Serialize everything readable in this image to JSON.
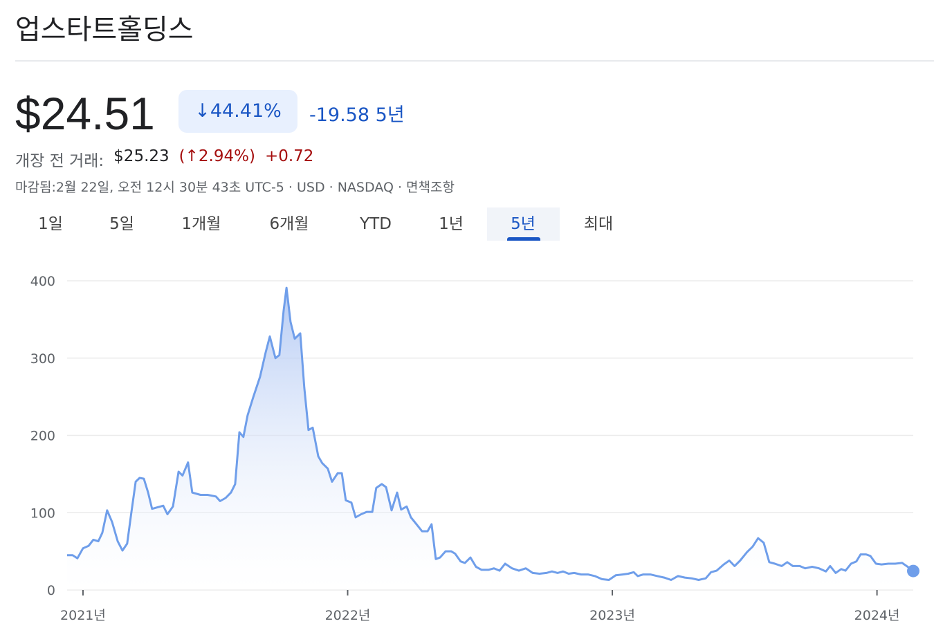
{
  "header": {
    "title": "업스타트홀딩스"
  },
  "quote": {
    "price": "$24.51",
    "change_percent": "↓44.41%",
    "change": "-19.58",
    "period": "5년"
  },
  "premarket": {
    "label": "개장 전 거래:",
    "price": "$25.23",
    "change_percent": "(↑2.94%)",
    "change": "+0.72"
  },
  "status": "마감됨:2월 22일, 오전 12시 30분 43초 UTC-5 · USD · NASDAQ · 면책조항",
  "tabs": {
    "items": [
      "1일",
      "5일",
      "1개월",
      "6개월",
      "YTD",
      "1년",
      "5년",
      "최대"
    ],
    "selected": 6
  },
  "chart_data": {
    "type": "area",
    "color": "#6f9eea",
    "grid": true,
    "x": [
      2020.94,
      2020.961,
      2020.979,
      2021.0,
      2021.021,
      2021.039,
      2021.058,
      2021.073,
      2021.091,
      2021.11,
      2021.131,
      2021.149,
      2021.167,
      2021.183,
      2021.199,
      2021.214,
      2021.23,
      2021.246,
      2021.261,
      2021.282,
      2021.303,
      2021.319,
      2021.34,
      2021.361,
      2021.376,
      2021.397,
      2021.413,
      2021.444,
      2021.471,
      2021.502,
      2021.518,
      2021.539,
      2021.559,
      2021.575,
      2021.591,
      2021.606,
      2021.622,
      2021.643,
      2021.669,
      2021.69,
      2021.706,
      2021.727,
      2021.742,
      2021.758,
      2021.769,
      2021.784,
      2021.8,
      2021.821,
      2021.836,
      2021.852,
      2021.868,
      2021.889,
      2021.904,
      2021.925,
      2021.941,
      2021.962,
      2021.978,
      2021.993,
      2022.014,
      2022.03,
      2022.051,
      2022.072,
      2022.093,
      2022.108,
      2022.129,
      2022.145,
      2022.166,
      2022.187,
      2022.202,
      2022.223,
      2022.239,
      2022.26,
      2022.281,
      2022.302,
      2022.317,
      2022.333,
      2022.349,
      2022.37,
      2022.391,
      2022.406,
      2022.427,
      2022.443,
      2022.464,
      2022.485,
      2022.506,
      2022.532,
      2022.553,
      2022.574,
      2022.595,
      2022.621,
      2022.647,
      2022.673,
      2022.699,
      2022.725,
      2022.751,
      2022.772,
      2022.793,
      2022.814,
      2022.835,
      2022.856,
      2022.882,
      2022.908,
      2022.934,
      2022.961,
      2022.987,
      2023.013,
      2023.039,
      2023.06,
      2023.081,
      2023.096,
      2023.117,
      2023.144,
      2023.17,
      2023.196,
      2023.222,
      2023.248,
      2023.274,
      2023.3,
      2023.326,
      2023.353,
      2023.373,
      2023.394,
      2023.421,
      2023.442,
      2023.462,
      2023.483,
      2023.509,
      2023.53,
      2023.551,
      2023.572,
      2023.593,
      2023.614,
      2023.64,
      2023.661,
      2023.682,
      2023.708,
      2023.729,
      2023.755,
      2023.781,
      2023.807,
      2023.823,
      2023.844,
      2023.865,
      2023.881,
      2023.902,
      2023.922,
      2023.938,
      2023.959,
      2023.975,
      2023.996,
      2024.017,
      2024.043,
      2024.069,
      2024.095,
      2024.116,
      2024.137
    ],
    "values": [
      45,
      45,
      41,
      54,
      57,
      65,
      63,
      74,
      103,
      88,
      63,
      51,
      60,
      101,
      140,
      145,
      144,
      126,
      105,
      107,
      109,
      98,
      108,
      153,
      148,
      165,
      126,
      123,
      123,
      121,
      115,
      119,
      126,
      137,
      204,
      198,
      226,
      249,
      276,
      307,
      328,
      300,
      304,
      361,
      391,
      347,
      325,
      332,
      262,
      207,
      210,
      173,
      164,
      157,
      140,
      151,
      151,
      116,
      113,
      94,
      98,
      101,
      101,
      132,
      137,
      133,
      103,
      126,
      104,
      108,
      94,
      85,
      76,
      76,
      85,
      40,
      42,
      50,
      50,
      47,
      37,
      35,
      42,
      30,
      26,
      26,
      28,
      25,
      34,
      28,
      25,
      28,
      22,
      21,
      22,
      24,
      22,
      24,
      21,
      22,
      20,
      20,
      18,
      14,
      13,
      19,
      20,
      21,
      23,
      18,
      20,
      20,
      18,
      16,
      13,
      18,
      16,
      15,
      13,
      15,
      23,
      25,
      33,
      38,
      31,
      38,
      49,
      56,
      67,
      61,
      36,
      34,
      31,
      36,
      31,
      31,
      28,
      30,
      28,
      24,
      31,
      22,
      27,
      25,
      34,
      37,
      46,
      46,
      44,
      34,
      33,
      34,
      34,
      35,
      30,
      24.51
    ],
    "xlim": [
      2020.94,
      2024.137
    ],
    "xticks": [
      {
        "value": 2021,
        "label": "2021년"
      },
      {
        "value": 2022,
        "label": "2022년"
      },
      {
        "value": 2023,
        "label": "2023년"
      },
      {
        "value": 2024,
        "label": "2024년"
      }
    ],
    "ylim": [
      0,
      400
    ],
    "yticks": [
      0,
      100,
      200,
      300,
      400
    ]
  }
}
